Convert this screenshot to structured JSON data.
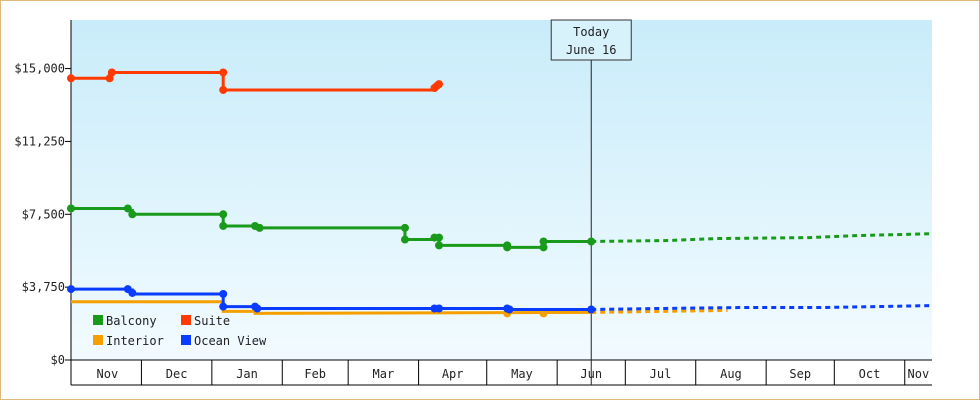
{
  "chart_data": {
    "type": "line",
    "title": "",
    "xlabel": "",
    "ylabel": "",
    "ylim": [
      0,
      17500
    ],
    "yticks": [
      {
        "value": 0,
        "label": "$0"
      },
      {
        "value": 3750,
        "label": "$3,750"
      },
      {
        "value": 7500,
        "label": "$7,500"
      },
      {
        "value": 11250,
        "label": "$11,250"
      },
      {
        "value": 15000,
        "label": "$15,000"
      }
    ],
    "x_range": [
      "2023-10-31",
      "2024-11-13"
    ],
    "months": [
      {
        "label": "Nov",
        "start": "2023-11-01",
        "end": "2023-12-01"
      },
      {
        "label": "Dec",
        "start": "2023-12-01",
        "end": "2024-01-01"
      },
      {
        "label": "Jan",
        "start": "2024-01-01",
        "end": "2024-02-01"
      },
      {
        "label": "Feb",
        "start": "2024-02-01",
        "end": "2024-03-01"
      },
      {
        "label": "Mar",
        "start": "2024-03-01",
        "end": "2024-04-01"
      },
      {
        "label": "Apr",
        "start": "2024-04-01",
        "end": "2024-05-01"
      },
      {
        "label": "May",
        "start": "2024-05-01",
        "end": "2024-06-01"
      },
      {
        "label": "Jun",
        "start": "2024-06-01",
        "end": "2024-07-01"
      },
      {
        "label": "Jul",
        "start": "2024-07-01",
        "end": "2024-08-01"
      },
      {
        "label": "Aug",
        "start": "2024-08-01",
        "end": "2024-09-01"
      },
      {
        "label": "Sep",
        "start": "2024-09-01",
        "end": "2024-10-01"
      },
      {
        "label": "Oct",
        "start": "2024-10-01",
        "end": "2024-11-01"
      },
      {
        "label": "Nov",
        "start": "2024-11-01",
        "end": "2024-11-13"
      }
    ],
    "today": {
      "date": "2024-06-16",
      "line1": "Today",
      "line2": "June 16"
    },
    "legend": {
      "placement": "bottom-left"
    },
    "series": [
      {
        "name": "Balcony",
        "color": "#1a9a1a",
        "points": [
          {
            "x": "2023-10-31",
            "y": 7800
          },
          {
            "x": "2023-11-25",
            "y": 7800
          },
          {
            "x": "2023-11-25",
            "y": 7700
          },
          {
            "x": "2023-11-27",
            "y": 7700
          },
          {
            "x": "2023-11-27",
            "y": 7500
          },
          {
            "x": "2024-01-06",
            "y": 7500
          },
          {
            "x": "2024-01-06",
            "y": 6900
          },
          {
            "x": "2024-01-20",
            "y": 6900
          },
          {
            "x": "2024-01-20",
            "y": 6800
          },
          {
            "x": "2024-03-26",
            "y": 6800
          },
          {
            "x": "2024-03-26",
            "y": 6200
          },
          {
            "x": "2024-04-08",
            "y": 6200
          },
          {
            "x": "2024-04-08",
            "y": 6300
          },
          {
            "x": "2024-04-10",
            "y": 6300
          },
          {
            "x": "2024-04-10",
            "y": 5900
          },
          {
            "x": "2024-05-10",
            "y": 5900
          },
          {
            "x": "2024-05-10",
            "y": 5800
          },
          {
            "x": "2024-05-26",
            "y": 5800
          },
          {
            "x": "2024-05-26",
            "y": 6100
          },
          {
            "x": "2024-06-16",
            "y": 6100
          }
        ],
        "markers": [
          {
            "x": "2023-10-31",
            "y": 7800
          },
          {
            "x": "2023-11-25",
            "y": 7800
          },
          {
            "x": "2023-11-27",
            "y": 7500
          },
          {
            "x": "2024-01-06",
            "y": 7500
          },
          {
            "x": "2024-01-06",
            "y": 6900
          },
          {
            "x": "2024-01-20",
            "y": 6900
          },
          {
            "x": "2024-01-22",
            "y": 6800
          },
          {
            "x": "2024-03-26",
            "y": 6800
          },
          {
            "x": "2024-03-26",
            "y": 6200
          },
          {
            "x": "2024-04-08",
            "y": 6300
          },
          {
            "x": "2024-04-10",
            "y": 6300
          },
          {
            "x": "2024-04-10",
            "y": 5900
          },
          {
            "x": "2024-05-10",
            "y": 5900
          },
          {
            "x": "2024-05-10",
            "y": 5800
          },
          {
            "x": "2024-05-26",
            "y": 5800
          },
          {
            "x": "2024-05-26",
            "y": 6100
          },
          {
            "x": "2024-06-16",
            "y": 6100
          }
        ],
        "forecast": [
          {
            "x": "2024-06-16",
            "y": 6100
          },
          {
            "x": "2024-07-20",
            "y": 6150
          },
          {
            "x": "2024-08-10",
            "y": 6250
          },
          {
            "x": "2024-09-20",
            "y": 6300
          },
          {
            "x": "2024-10-10",
            "y": 6400
          },
          {
            "x": "2024-11-13",
            "y": 6500
          }
        ]
      },
      {
        "name": "Suite",
        "color": "#ff3a00",
        "points": [
          {
            "x": "2023-10-31",
            "y": 14500
          },
          {
            "x": "2023-11-17",
            "y": 14500
          },
          {
            "x": "2023-11-17",
            "y": 14800
          },
          {
            "x": "2024-01-06",
            "y": 14800
          },
          {
            "x": "2024-01-06",
            "y": 13900
          },
          {
            "x": "2024-04-08",
            "y": 13900
          },
          {
            "x": "2024-04-08",
            "y": 14100
          },
          {
            "x": "2024-04-10",
            "y": 14200
          }
        ],
        "markers": [
          {
            "x": "2023-10-31",
            "y": 14500
          },
          {
            "x": "2023-11-17",
            "y": 14500
          },
          {
            "x": "2023-11-18",
            "y": 14800
          },
          {
            "x": "2024-01-06",
            "y": 14800
          },
          {
            "x": "2024-01-06",
            "y": 13900
          },
          {
            "x": "2024-04-08",
            "y": 14000
          },
          {
            "x": "2024-04-09",
            "y": 14100
          },
          {
            "x": "2024-04-10",
            "y": 14200
          }
        ],
        "forecast": []
      },
      {
        "name": "Interior",
        "color": "#f5a000",
        "points": [
          {
            "x": "2023-10-31",
            "y": 3000
          },
          {
            "x": "2024-01-06",
            "y": 3000
          },
          {
            "x": "2024-01-06",
            "y": 2500
          },
          {
            "x": "2024-01-20",
            "y": 2500
          },
          {
            "x": "2024-01-20",
            "y": 2400
          },
          {
            "x": "2024-06-16",
            "y": 2450
          }
        ],
        "markers": [
          {
            "x": "2024-05-10",
            "y": 2400
          },
          {
            "x": "2024-05-26",
            "y": 2400
          }
        ],
        "forecast": [
          {
            "x": "2024-06-16",
            "y": 2450
          },
          {
            "x": "2024-08-15",
            "y": 2550
          }
        ]
      },
      {
        "name": "Ocean View",
        "color": "#0a3cff",
        "points": [
          {
            "x": "2023-10-31",
            "y": 3650
          },
          {
            "x": "2023-11-25",
            "y": 3650
          },
          {
            "x": "2023-11-25",
            "y": 3600
          },
          {
            "x": "2023-11-27",
            "y": 3600
          },
          {
            "x": "2023-11-27",
            "y": 3400
          },
          {
            "x": "2024-01-06",
            "y": 3400
          },
          {
            "x": "2024-01-06",
            "y": 2750
          },
          {
            "x": "2024-01-20",
            "y": 2750
          },
          {
            "x": "2024-01-20",
            "y": 2650
          },
          {
            "x": "2024-05-10",
            "y": 2650
          },
          {
            "x": "2024-05-10",
            "y": 2600
          },
          {
            "x": "2024-06-16",
            "y": 2600
          }
        ],
        "markers": [
          {
            "x": "2023-10-31",
            "y": 3650
          },
          {
            "x": "2023-11-25",
            "y": 3650
          },
          {
            "x": "2023-11-27",
            "y": 3450
          },
          {
            "x": "2024-01-06",
            "y": 3400
          },
          {
            "x": "2024-01-06",
            "y": 2750
          },
          {
            "x": "2024-01-20",
            "y": 2750
          },
          {
            "x": "2024-01-21",
            "y": 2650
          },
          {
            "x": "2024-04-08",
            "y": 2650
          },
          {
            "x": "2024-04-10",
            "y": 2650
          },
          {
            "x": "2024-05-10",
            "y": 2650
          },
          {
            "x": "2024-05-11",
            "y": 2600
          },
          {
            "x": "2024-06-16",
            "y": 2600
          }
        ],
        "forecast": [
          {
            "x": "2024-06-16",
            "y": 2600
          },
          {
            "x": "2024-07-15",
            "y": 2650
          },
          {
            "x": "2024-08-20",
            "y": 2700
          },
          {
            "x": "2024-09-25",
            "y": 2700
          },
          {
            "x": "2024-10-20",
            "y": 2750
          },
          {
            "x": "2024-11-13",
            "y": 2800
          }
        ]
      }
    ]
  }
}
